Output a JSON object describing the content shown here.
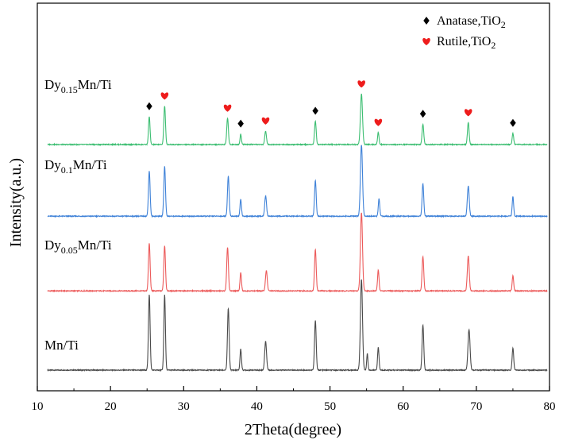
{
  "chart_data": {
    "type": "line",
    "xlabel": "2Theta(degree)",
    "ylabel": "Intensity(a.u.)",
    "xlim": [
      10,
      80
    ],
    "xticks": [
      10,
      20,
      30,
      40,
      50,
      60,
      70,
      80
    ],
    "grid": false,
    "legend": {
      "placement": "top-right",
      "entries": [
        {
          "marker": "diamond",
          "label_main": "Anatase,TiO",
          "label_sub": "2",
          "color": "#000000"
        },
        {
          "marker": "heart",
          "label_main": "Rutile,TiO",
          "label_sub": "2",
          "color": "#ee1c1c"
        }
      ]
    },
    "series": [
      {
        "name": "Mn/Ti",
        "label_parts": [
          {
            "t": "Mn/Ti"
          }
        ],
        "color": "#4a4a4a",
        "baseline_offset": 0,
        "peaks": [
          {
            "x": 25.3,
            "h": 1.0,
            "w": 0.16
          },
          {
            "x": 27.4,
            "h": 1.0,
            "w": 0.15
          },
          {
            "x": 36.1,
            "h": 0.82,
            "w": 0.16
          },
          {
            "x": 37.8,
            "h": 0.28,
            "w": 0.14
          },
          {
            "x": 41.2,
            "h": 0.38,
            "w": 0.18
          },
          {
            "x": 48.0,
            "h": 0.66,
            "w": 0.16
          },
          {
            "x": 54.3,
            "h": 1.2,
            "w": 0.2
          },
          {
            "x": 55.1,
            "h": 0.22,
            "w": 0.12
          },
          {
            "x": 56.6,
            "h": 0.3,
            "w": 0.14
          },
          {
            "x": 62.7,
            "h": 0.6,
            "w": 0.16
          },
          {
            "x": 69.0,
            "h": 0.54,
            "w": 0.2
          },
          {
            "x": 75.0,
            "h": 0.29,
            "w": 0.15
          }
        ]
      },
      {
        "name": "Dy0.05Mn/Ti",
        "label_parts": [
          {
            "t": "Dy"
          },
          {
            "t": "0.05",
            "sub": true
          },
          {
            "t": "Mn/Ti"
          }
        ],
        "color": "#ec5a5a",
        "baseline_offset": 1.05,
        "peaks": [
          {
            "x": 25.3,
            "h": 0.63,
            "w": 0.16
          },
          {
            "x": 27.4,
            "h": 0.6,
            "w": 0.16
          },
          {
            "x": 36.0,
            "h": 0.58,
            "w": 0.16
          },
          {
            "x": 37.8,
            "h": 0.24,
            "w": 0.14
          },
          {
            "x": 41.3,
            "h": 0.27,
            "w": 0.17
          },
          {
            "x": 48.0,
            "h": 0.55,
            "w": 0.16
          },
          {
            "x": 54.3,
            "h": 1.04,
            "w": 0.2
          },
          {
            "x": 56.6,
            "h": 0.28,
            "w": 0.14
          },
          {
            "x": 62.7,
            "h": 0.46,
            "w": 0.16
          },
          {
            "x": 68.9,
            "h": 0.46,
            "w": 0.18
          },
          {
            "x": 75.0,
            "h": 0.2,
            "w": 0.14
          }
        ]
      },
      {
        "name": "Dy0.1Mn/Ti",
        "label_parts": [
          {
            "t": "Dy"
          },
          {
            "t": "0.1",
            "sub": true
          },
          {
            "t": "Mn/Ti"
          }
        ],
        "color": "#3f82d8",
        "baseline_offset": 2.04,
        "peaks": [
          {
            "x": 25.3,
            "h": 0.6,
            "w": 0.16
          },
          {
            "x": 27.4,
            "h": 0.66,
            "w": 0.16
          },
          {
            "x": 36.1,
            "h": 0.53,
            "w": 0.16
          },
          {
            "x": 37.8,
            "h": 0.22,
            "w": 0.14
          },
          {
            "x": 41.2,
            "h": 0.27,
            "w": 0.17
          },
          {
            "x": 48.0,
            "h": 0.47,
            "w": 0.16
          },
          {
            "x": 54.3,
            "h": 0.95,
            "w": 0.2
          },
          {
            "x": 56.7,
            "h": 0.23,
            "w": 0.14
          },
          {
            "x": 62.7,
            "h": 0.43,
            "w": 0.16
          },
          {
            "x": 68.9,
            "h": 0.4,
            "w": 0.18
          },
          {
            "x": 75.0,
            "h": 0.26,
            "w": 0.14
          }
        ]
      },
      {
        "name": "Dy0.15Mn/Ti",
        "label_parts": [
          {
            "t": "Dy"
          },
          {
            "t": "0.15",
            "sub": true
          },
          {
            "t": "Mn/Ti"
          }
        ],
        "color": "#3dbe72",
        "baseline_offset": 2.99,
        "peaks": [
          {
            "x": 25.3,
            "h": 0.37,
            "w": 0.15
          },
          {
            "x": 27.4,
            "h": 0.51,
            "w": 0.16
          },
          {
            "x": 36.0,
            "h": 0.35,
            "w": 0.16
          },
          {
            "x": 37.8,
            "h": 0.14,
            "w": 0.13
          },
          {
            "x": 41.2,
            "h": 0.18,
            "w": 0.16
          },
          {
            "x": 48.0,
            "h": 0.31,
            "w": 0.16
          },
          {
            "x": 54.3,
            "h": 0.67,
            "w": 0.2
          },
          {
            "x": 56.6,
            "h": 0.16,
            "w": 0.14
          },
          {
            "x": 62.7,
            "h": 0.27,
            "w": 0.16
          },
          {
            "x": 68.9,
            "h": 0.29,
            "w": 0.16
          },
          {
            "x": 75.0,
            "h": 0.15,
            "w": 0.14
          }
        ]
      }
    ],
    "markers": [
      {
        "x": 25.3,
        "type": "diamond",
        "series": 3
      },
      {
        "x": 27.4,
        "type": "heart",
        "series": 3
      },
      {
        "x": 36.0,
        "type": "heart",
        "series": 3
      },
      {
        "x": 37.8,
        "type": "diamond",
        "series": 3
      },
      {
        "x": 41.2,
        "type": "heart",
        "series": 3
      },
      {
        "x": 48.0,
        "type": "diamond",
        "series": 3
      },
      {
        "x": 54.3,
        "type": "heart",
        "series": 3
      },
      {
        "x": 56.6,
        "type": "heart",
        "series": 3
      },
      {
        "x": 62.7,
        "type": "diamond",
        "series": 3
      },
      {
        "x": 68.9,
        "type": "heart",
        "series": 3
      },
      {
        "x": 75.0,
        "type": "diamond",
        "series": 3
      }
    ]
  }
}
